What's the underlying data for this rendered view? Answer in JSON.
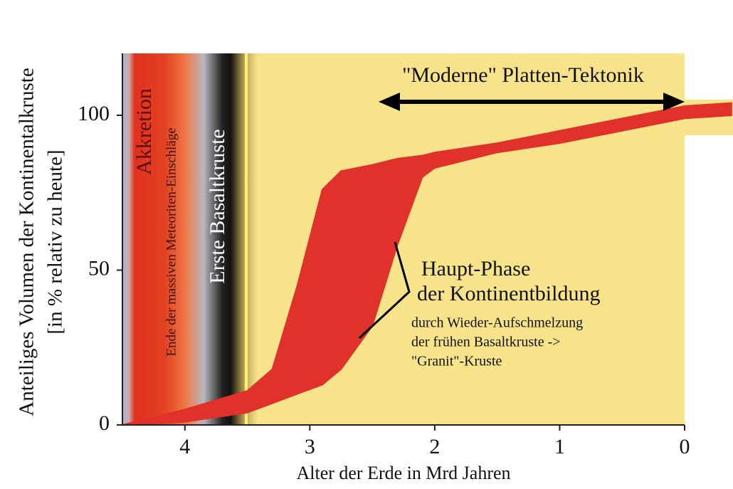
{
  "chart_data": {
    "type": "band",
    "ylabel": [
      "Anteiliges Volumen der Kontinentalkruste",
      "[in % relativ zu heute]"
    ],
    "xlabel": "Alter der Erde in Mrd Jahren",
    "xlim": [
      4.5,
      0
    ],
    "xticks": [
      4,
      3,
      2,
      1,
      0
    ],
    "ylim": [
      0,
      120
    ],
    "yticks": [
      0,
      50,
      100
    ],
    "band": {
      "color": "#e0312b",
      "x": [
        4.5,
        4.0,
        3.5,
        3.3,
        3.1,
        2.9,
        2.75,
        2.5,
        2.3,
        2.1,
        2.0,
        1.5,
        1.0,
        0.5,
        0,
        -0.38
      ],
      "upper": [
        0,
        5,
        11,
        18,
        45,
        76,
        82,
        84,
        86,
        87,
        88,
        91,
        95,
        99,
        103,
        104
      ],
      "lower": [
        0,
        1,
        4,
        7,
        10,
        13,
        18,
        32,
        58,
        80,
        83,
        88,
        91,
        95,
        99,
        100
      ]
    },
    "annotations": {
      "accretion": "Akkretion",
      "meteorites": "Ende der massiven Meteoriten-Einschläge",
      "basalt": "Erste Basaltkruste",
      "tectonics": "\"Moderne\" Platten-Tektonik",
      "main_phase": [
        "Haupt-Phase",
        "der Kontinentbildung"
      ],
      "main_phase_detail": [
        "durch Wieder-Aufschmelzung",
        "der frühen Basaltkruste ->",
        "\"Granit\"-Kruste"
      ]
    }
  }
}
